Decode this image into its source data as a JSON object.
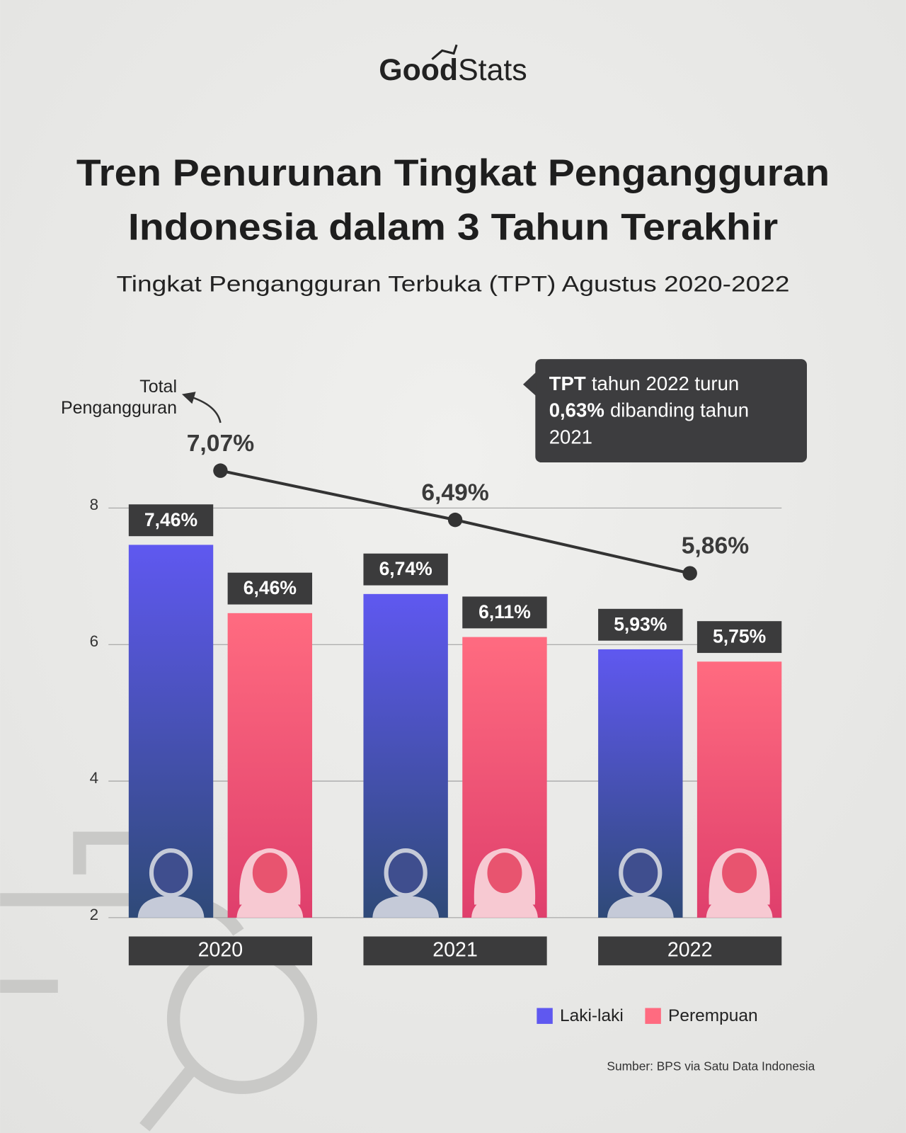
{
  "chart_data": {
    "type": "bar",
    "logo": [
      "Good",
      "Stats"
    ],
    "title": [
      "Tren Penurunan Tingkat Pengangguran",
      "Indonesia dalam 3 Tahun Terakhir"
    ],
    "subtitle": "Tingkat Pengangguran Terbuka (TPT) Agustus 2020-2022",
    "annotation": {
      "bold": [
        "TPT",
        "0,63%"
      ],
      "text": [
        "tahun 2022 turun",
        "dibanding tahun",
        "2021"
      ]
    },
    "categories": [
      "2020",
      "2021",
      "2022"
    ],
    "series": [
      {
        "name": "Laki-laki",
        "color": "#5f58f0",
        "values": [
          7.46,
          6.74,
          5.93
        ],
        "value_labels": [
          "7,46%",
          "6,74%",
          "5,93%"
        ]
      },
      {
        "name": "Perempuan",
        "color": "#ff6b80",
        "values": [
          6.46,
          6.11,
          5.75
        ],
        "value_labels": [
          "6,46%",
          "6,11%",
          "5,75%"
        ]
      },
      {
        "name": "Total Pengangguran",
        "type": "line",
        "axis": "y2",
        "color": "#333333",
        "values": [
          7.07,
          6.49,
          5.86
        ],
        "value_labels": [
          "7,07%",
          "6,49%",
          "5,86%"
        ]
      }
    ],
    "ylim": [
      2,
      8
    ],
    "yticks": [
      2,
      4,
      6,
      8
    ],
    "y2lim": [
      1.8,
      6.63
    ],
    "grid": true,
    "source": "Sumber: BPS via Satu Data Indonesia"
  }
}
